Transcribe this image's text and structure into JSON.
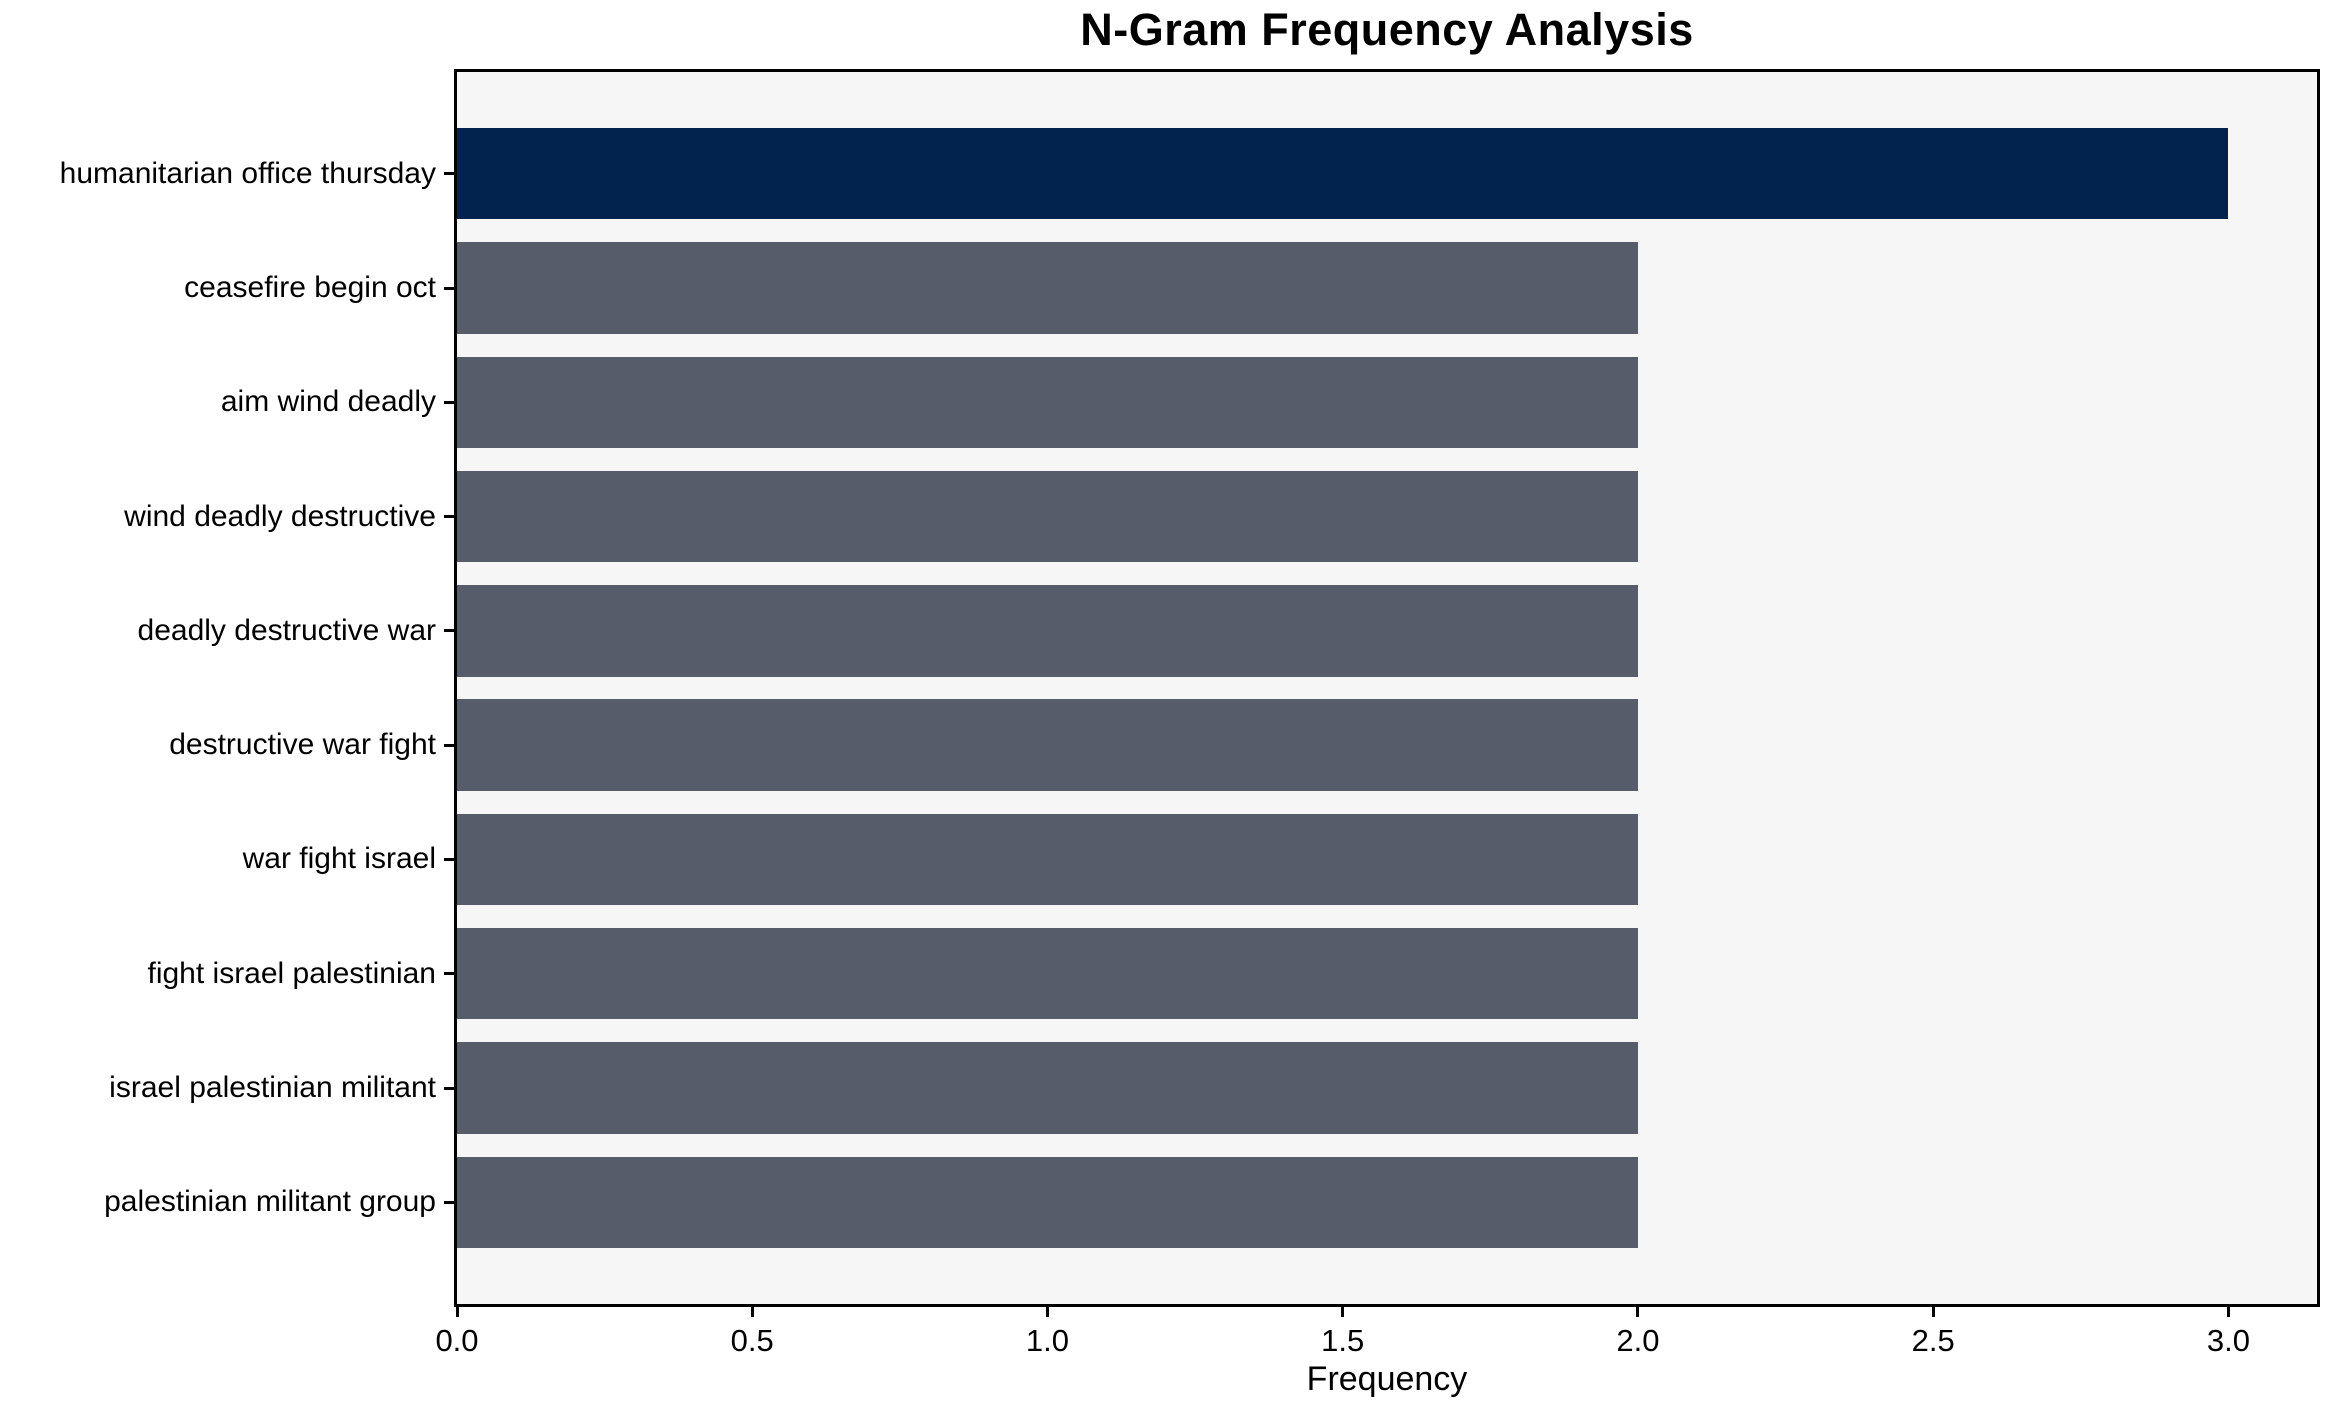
{
  "chart_data": {
    "type": "bar",
    "orientation": "horizontal",
    "title": "N-Gram Frequency Analysis",
    "xlabel": "Frequency",
    "ylabel": "",
    "categories": [
      "humanitarian office thursday",
      "ceasefire begin oct",
      "aim wind deadly",
      "wind deadly destructive",
      "deadly destructive war",
      "destructive war fight",
      "war fight israel",
      "fight israel palestinian",
      "israel palestinian militant",
      "palestinian militant group"
    ],
    "values": [
      3,
      2,
      2,
      2,
      2,
      2,
      2,
      2,
      2,
      2
    ],
    "bar_colors": [
      "#02234E",
      "#575C6B",
      "#575C6B",
      "#575C6B",
      "#575C6B",
      "#575C6B",
      "#575C6B",
      "#575C6B",
      "#575C6B",
      "#575C6B"
    ],
    "x_ticks": [
      0,
      0.5,
      1,
      1.5,
      2,
      2.5,
      3
    ],
    "x_tick_labels": [
      "0.0",
      "0.5",
      "1.0",
      "1.5",
      "2.0",
      "2.5",
      "3.0"
    ],
    "xlim": [
      0,
      3.15
    ],
    "grid": false,
    "legend_position": "none",
    "colors": {
      "highlight": "#02234E",
      "default": "#575C6B",
      "plot_background": "#F6F6F7",
      "figure_background": "#FFFFFF",
      "spine": "#000000",
      "text": "#000000"
    }
  }
}
